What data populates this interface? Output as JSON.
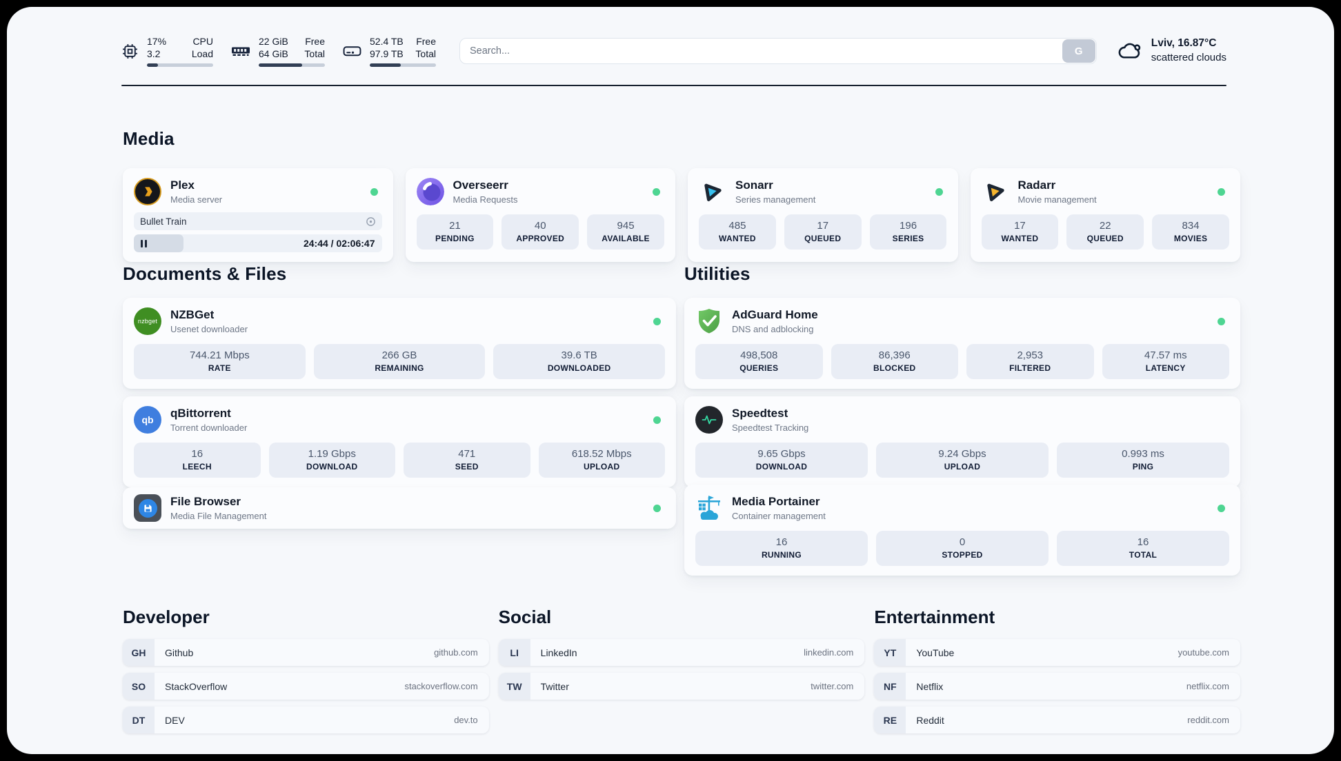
{
  "header": {
    "cpu": {
      "value_top": "17%",
      "value_bottom": "3.2",
      "label_top": "CPU",
      "label_bottom": "Load",
      "percent": 17
    },
    "memory": {
      "value_top": "22 GiB",
      "value_bottom": "64 GiB",
      "label_top": "Free",
      "label_bottom": "Total",
      "percent": 66
    },
    "disk": {
      "value_top": "52.4 TB",
      "value_bottom": "97.9 TB",
      "label_top": "Free",
      "label_bottom": "Total",
      "percent": 47
    },
    "search": {
      "placeholder": "Search...",
      "button_label": "G"
    },
    "weather": {
      "location": "Lviv, 16.87°C",
      "condition": "scattered clouds"
    }
  },
  "sections": {
    "media": {
      "title": "Media"
    },
    "documents": {
      "title": "Documents & Files"
    },
    "utilities": {
      "title": "Utilities"
    }
  },
  "apps": {
    "plex": {
      "name": "Plex",
      "desc": "Media server",
      "now_playing": {
        "title": "Bullet Train",
        "time": "24:44 / 02:06:47",
        "progress_percent": 20
      }
    },
    "overseerr": {
      "name": "Overseerr",
      "desc": "Media Requests",
      "stats": [
        {
          "value": "21",
          "label": "PENDING"
        },
        {
          "value": "40",
          "label": "APPROVED"
        },
        {
          "value": "945",
          "label": "AVAILABLE"
        }
      ]
    },
    "sonarr": {
      "name": "Sonarr",
      "desc": "Series management",
      "stats": [
        {
          "value": "485",
          "label": "WANTED"
        },
        {
          "value": "17",
          "label": "QUEUED"
        },
        {
          "value": "196",
          "label": "SERIES"
        }
      ]
    },
    "radarr": {
      "name": "Radarr",
      "desc": "Movie management",
      "stats": [
        {
          "value": "17",
          "label": "WANTED"
        },
        {
          "value": "22",
          "label": "QUEUED"
        },
        {
          "value": "834",
          "label": "MOVIES"
        }
      ]
    },
    "nzbget": {
      "name": "NZBGet",
      "desc": "Usenet downloader",
      "icon_text": "nzbget",
      "stats": [
        {
          "value": "744.21 Mbps",
          "label": "RATE"
        },
        {
          "value": "266 GB",
          "label": "REMAINING"
        },
        {
          "value": "39.6 TB",
          "label": "DOWNLOADED"
        }
      ]
    },
    "qbittorrent": {
      "name": "qBittorrent",
      "desc": "Torrent downloader",
      "icon_text": "qb",
      "stats": [
        {
          "value": "16",
          "label": "LEECH"
        },
        {
          "value": "1.19 Gbps",
          "label": "DOWNLOAD"
        },
        {
          "value": "471",
          "label": "SEED"
        },
        {
          "value": "618.52 Mbps",
          "label": "UPLOAD"
        }
      ]
    },
    "filebrowser": {
      "name": "File Browser",
      "desc": "Media File Management"
    },
    "adguard": {
      "name": "AdGuard Home",
      "desc": "DNS and adblocking",
      "stats": [
        {
          "value": "498,508",
          "label": "QUERIES"
        },
        {
          "value": "86,396",
          "label": "BLOCKED"
        },
        {
          "value": "2,953",
          "label": "FILTERED"
        },
        {
          "value": "47.57 ms",
          "label": "LATENCY"
        }
      ]
    },
    "speedtest": {
      "name": "Speedtest",
      "desc": "Speedtest Tracking",
      "stats": [
        {
          "value": "9.65 Gbps",
          "label": "DOWNLOAD"
        },
        {
          "value": "9.24 Gbps",
          "label": "UPLOAD"
        },
        {
          "value": "0.993 ms",
          "label": "PING"
        }
      ]
    },
    "portainer": {
      "name": "Media Portainer",
      "desc": "Container management",
      "stats": [
        {
          "value": "16",
          "label": "RUNNING"
        },
        {
          "value": "0",
          "label": "STOPPED"
        },
        {
          "value": "16",
          "label": "TOTAL"
        }
      ]
    }
  },
  "links": {
    "developer": {
      "title": "Developer",
      "items": [
        {
          "abbr": "GH",
          "name": "Github",
          "url": "github.com"
        },
        {
          "abbr": "SO",
          "name": "StackOverflow",
          "url": "stackoverflow.com"
        },
        {
          "abbr": "DT",
          "name": "DEV",
          "url": "dev.to"
        }
      ]
    },
    "social": {
      "title": "Social",
      "items": [
        {
          "abbr": "LI",
          "name": "LinkedIn",
          "url": "linkedin.com"
        },
        {
          "abbr": "TW",
          "name": "Twitter",
          "url": "twitter.com"
        }
      ]
    },
    "entertainment": {
      "title": "Entertainment",
      "items": [
        {
          "abbr": "YT",
          "name": "YouTube",
          "url": "youtube.com"
        },
        {
          "abbr": "NF",
          "name": "Netflix",
          "url": "netflix.com"
        },
        {
          "abbr": "RE",
          "name": "Reddit",
          "url": "reddit.com"
        }
      ]
    }
  },
  "colors": {
    "status_online": "#4ed592",
    "accent_dark": "#16202e"
  }
}
